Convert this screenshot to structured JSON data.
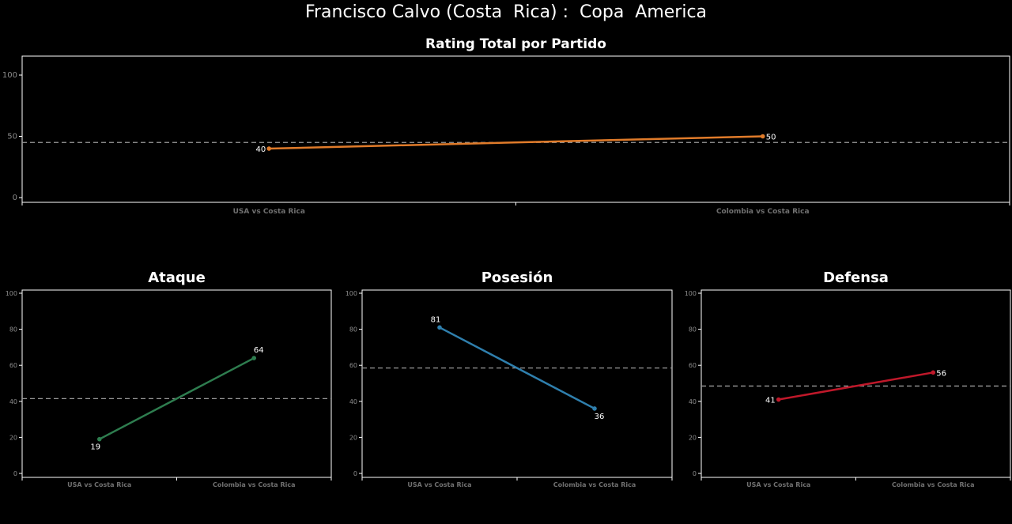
{
  "title": "Francisco Calvo (Costa  Rica) :  Copa  America",
  "colors": {
    "total": "#e07b2a",
    "ataque": "#2e7d4f",
    "posesion": "#2f7fad",
    "defensa": "#c0182a",
    "frame": "#ffffff",
    "average_line": "#9a9a9a"
  },
  "chart_data": [
    {
      "id": "total",
      "type": "line",
      "title": "Rating Total por Partido",
      "categories": [
        "USA vs Costa Rica",
        "Colombia vs Costa Rica"
      ],
      "values": [
        40,
        50
      ],
      "ylim": [
        0,
        100
      ],
      "yticks": [
        0,
        50,
        100
      ],
      "average": 45,
      "grid": false,
      "legend": "none"
    },
    {
      "id": "ataque",
      "type": "line",
      "title": "Ataque",
      "categories": [
        "USA vs Costa Rica",
        "Colombia vs Costa Rica"
      ],
      "values": [
        19,
        64
      ],
      "ylim": [
        0,
        100
      ],
      "yticks": [
        0,
        20,
        40,
        60,
        80,
        100
      ],
      "average": 41.5,
      "grid": false,
      "legend": "none"
    },
    {
      "id": "posesion",
      "type": "line",
      "title": "Posesión",
      "categories": [
        "USA vs Costa Rica",
        "Colombia vs Costa Rica"
      ],
      "values": [
        81,
        36
      ],
      "ylim": [
        0,
        100
      ],
      "yticks": [
        0,
        20,
        40,
        60,
        80,
        100
      ],
      "average": 58.5,
      "grid": false,
      "legend": "none"
    },
    {
      "id": "defensa",
      "type": "line",
      "title": "Defensa",
      "categories": [
        "USA vs Costa Rica",
        "Colombia vs Costa Rica"
      ],
      "values": [
        41,
        56
      ],
      "ylim": [
        0,
        100
      ],
      "yticks": [
        0,
        20,
        40,
        60,
        80,
        100
      ],
      "average": 48.5,
      "grid": false,
      "legend": "none"
    }
  ]
}
